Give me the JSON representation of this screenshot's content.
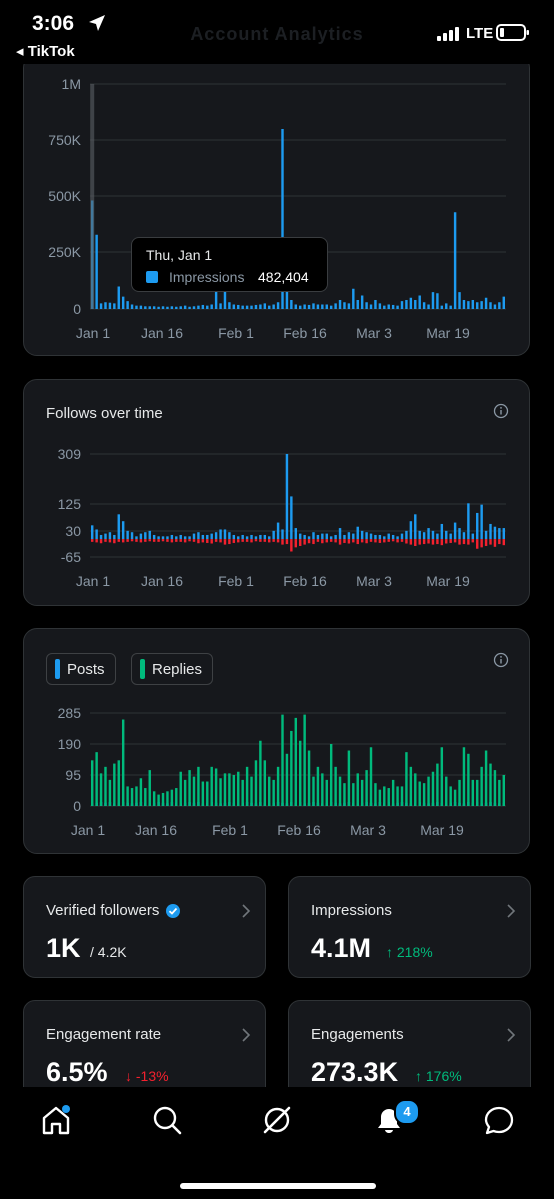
{
  "status": {
    "time": "3:06",
    "back_app": "TikTok",
    "network": "LTE",
    "ghost_title": "Account Analytics"
  },
  "impressions_chart": {
    "y_ticks": [
      "1M",
      "750K",
      "500K",
      "250K",
      "0"
    ],
    "x_ticks": [
      "Jan 1",
      "Jan 16",
      "Feb 1",
      "Feb 16",
      "Mar 3",
      "Mar 19"
    ],
    "tooltip": {
      "date": "Thu, Jan 1",
      "series": "Impressions",
      "value": "482,404"
    }
  },
  "follows_chart": {
    "title": "Follows over time",
    "y_ticks": [
      "309",
      "125",
      "30",
      "-65"
    ],
    "x_ticks": [
      "Jan 1",
      "Jan 16",
      "Feb 1",
      "Feb 16",
      "Mar 3",
      "Mar 19"
    ]
  },
  "posts_chart": {
    "legend": {
      "posts": "Posts",
      "replies": "Replies"
    },
    "y_ticks": [
      "285",
      "190",
      "95",
      "0"
    ],
    "x_ticks": [
      "Jan 1",
      "Jan 16",
      "Feb 1",
      "Feb 16",
      "Mar 3",
      "Mar 19"
    ]
  },
  "stats": {
    "verified": {
      "label": "Verified followers",
      "value": "1K",
      "sub": "/ 4.2K"
    },
    "impressions": {
      "label": "Impressions",
      "value": "4.1M",
      "change": "218%"
    },
    "engagement_rate": {
      "label": "Engagement rate",
      "value": "6.5%",
      "change": "-13%"
    },
    "engagements": {
      "label": "Engagements",
      "value": "273.3K",
      "change": "176%"
    }
  },
  "nav": {
    "notification_count": "4"
  },
  "colors": {
    "accent": "#1d9bf0",
    "negative": "#f4212e",
    "replies": "#00ba7c",
    "positive": "#00ba7c"
  },
  "chart_data": [
    {
      "type": "bar",
      "ylabel": "",
      "ylim": [
        0,
        1000000
      ],
      "x_range": [
        "Jan 1",
        "Apr 1"
      ],
      "series": [
        {
          "name": "Impressions",
          "values": [
            482404,
            330000,
            25000,
            30000,
            28000,
            25000,
            100000,
            55000,
            35000,
            20000,
            15000,
            15000,
            12000,
            12000,
            12000,
            10000,
            12000,
            10000,
            12000,
            10000,
            12000,
            15000,
            10000,
            12000,
            15000,
            18000,
            15000,
            20000,
            110000,
            25000,
            100000,
            30000,
            20000,
            18000,
            15000,
            15000,
            15000,
            18000,
            20000,
            25000,
            15000,
            20000,
            30000,
            800000,
            150000,
            40000,
            20000,
            15000,
            20000,
            18000,
            25000,
            20000,
            20000,
            20000,
            15000,
            25000,
            40000,
            30000,
            25000,
            90000,
            40000,
            60000,
            30000,
            20000,
            40000,
            25000,
            15000,
            20000,
            18000,
            15000,
            35000,
            40000,
            50000,
            40000,
            60000,
            30000,
            20000,
            75000,
            70000,
            15000,
            25000,
            15000,
            430000,
            75000,
            40000,
            35000,
            40000,
            30000,
            35000,
            50000,
            30000,
            20000,
            30000,
            55000
          ]
        }
      ]
    },
    {
      "type": "bar",
      "title": "Follows over time",
      "ylim": [
        -65,
        309
      ],
      "x_range": [
        "Jan 1",
        "Apr 1"
      ],
      "series": [
        {
          "name": "",
          "values": [
            50,
            35,
            15,
            20,
            25,
            15,
            90,
            65,
            30,
            25,
            10,
            20,
            25,
            30,
            15,
            10,
            10,
            10,
            15,
            10,
            15,
            10,
            10,
            20,
            25,
            15,
            15,
            20,
            25,
            35,
            35,
            25,
            15,
            10,
            15,
            10,
            15,
            10,
            15,
            15,
            10,
            30,
            60,
            35,
            309,
            155,
            40,
            20,
            15,
            10,
            25,
            15,
            20,
            20,
            10,
            15,
            40,
            15,
            25,
            20,
            45,
            30,
            25,
            20,
            15,
            15,
            10,
            20,
            15,
            10,
            20,
            30,
            65,
            90,
            30,
            25,
            40,
            30,
            20,
            55,
            30,
            20,
            60,
            40,
            25,
            130,
            20,
            95,
            125,
            30,
            55,
            45,
            40,
            40
          ]
        },
        {
          "name": "",
          "values": [
            -10,
            -12,
            -15,
            -10,
            -12,
            -15,
            -10,
            -12,
            -10,
            -8,
            -10,
            -12,
            -10,
            -8,
            -10,
            -10,
            -8,
            -10,
            -12,
            -10,
            -10,
            -12,
            -8,
            -10,
            -15,
            -12,
            -14,
            -16,
            -10,
            -12,
            -20,
            -18,
            -14,
            -12,
            -10,
            -10,
            -12,
            -8,
            -10,
            -10,
            -12,
            -10,
            -12,
            -20,
            -18,
            -45,
            -30,
            -25,
            -20,
            -15,
            -18,
            -10,
            -15,
            -12,
            -10,
            -12,
            -20,
            -14,
            -16,
            -12,
            -18,
            -12,
            -15,
            -10,
            -12,
            -14,
            -12,
            -10,
            -8,
            -12,
            -10,
            -16,
            -20,
            -25,
            -20,
            -18,
            -16,
            -20,
            -18,
            -22,
            -16,
            -14,
            -12,
            -20,
            -18,
            -20,
            -12,
            -35,
            -30,
            -25,
            -20,
            -28,
            -18,
            -22
          ]
        }
      ]
    },
    {
      "type": "bar",
      "ylim": [
        0,
        285
      ],
      "x_range": [
        "Jan 1",
        "Apr 1"
      ],
      "series": [
        {
          "name": "Posts",
          "values": [
            8,
            10,
            12,
            10,
            12,
            8,
            10,
            12,
            10,
            8,
            10,
            12,
            10,
            8,
            10,
            12,
            10,
            8,
            12,
            10,
            8,
            10,
            12,
            10,
            12,
            8,
            10,
            12,
            10,
            8,
            10,
            12,
            10,
            8,
            10,
            12,
            10,
            8,
            12,
            10,
            8,
            10,
            12,
            10,
            8,
            12,
            10,
            12,
            8,
            10,
            12,
            10,
            8,
            10,
            12,
            10,
            8,
            10,
            12,
            10,
            8,
            10,
            12,
            10,
            8,
            12,
            10,
            12,
            8,
            10,
            12,
            10,
            8,
            10,
            12,
            10,
            8,
            10,
            12,
            10,
            8,
            10,
            12,
            10,
            8,
            12,
            10,
            12,
            8,
            10,
            12,
            10,
            8,
            10
          ]
        },
        {
          "name": "Replies",
          "values": [
            140,
            165,
            100,
            120,
            80,
            130,
            140,
            265,
            60,
            55,
            60,
            85,
            55,
            110,
            45,
            35,
            40,
            45,
            50,
            55,
            105,
            80,
            110,
            90,
            120,
            75,
            75,
            120,
            115,
            85,
            100,
            100,
            95,
            105,
            80,
            120,
            90,
            140,
            200,
            140,
            90,
            80,
            120,
            280,
            160,
            230,
            270,
            200,
            280,
            170,
            90,
            120,
            100,
            80,
            190,
            120,
            90,
            70,
            170,
            70,
            100,
            80,
            110,
            180,
            70,
            50,
            60,
            55,
            80,
            60,
            60,
            165,
            120,
            100,
            75,
            70,
            90,
            105,
            130,
            180,
            90,
            60,
            50,
            80,
            180,
            160,
            80,
            80,
            120,
            170,
            130,
            110,
            80,
            95
          ]
        }
      ]
    }
  ]
}
